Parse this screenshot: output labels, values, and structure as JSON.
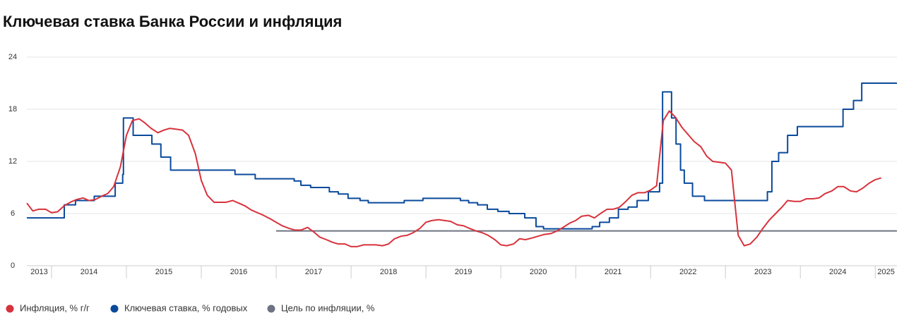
{
  "chart_data": {
    "type": "line",
    "title": "Ключевая ставка Банка России и инфляция",
    "xlim": [
      2013.67,
      2025.29
    ],
    "xticks": [
      2013,
      2014,
      2015,
      2016,
      2017,
      2018,
      2019,
      2020,
      2021,
      2022,
      2023,
      2024,
      2025
    ],
    "ylim": [
      0,
      24
    ],
    "yticks": [
      0,
      6,
      12,
      18,
      24
    ],
    "grid": true,
    "series": [
      {
        "name": "Инфляция, % г/г",
        "color": "#d8323c",
        "step": false,
        "x": [
          2013.67,
          2013.75,
          2013.83,
          2013.92,
          2014.0,
          2014.08,
          2014.17,
          2014.25,
          2014.33,
          2014.42,
          2014.5,
          2014.58,
          2014.67,
          2014.75,
          2014.83,
          2014.92,
          2015.0,
          2015.08,
          2015.17,
          2015.25,
          2015.33,
          2015.42,
          2015.5,
          2015.58,
          2015.67,
          2015.75,
          2015.83,
          2015.92,
          2016.0,
          2016.08,
          2016.17,
          2016.25,
          2016.33,
          2016.42,
          2016.5,
          2016.58,
          2016.67,
          2016.75,
          2016.83,
          2016.92,
          2017.0,
          2017.08,
          2017.17,
          2017.25,
          2017.33,
          2017.42,
          2017.5,
          2017.58,
          2017.67,
          2017.75,
          2017.83,
          2017.92,
          2018.0,
          2018.08,
          2018.17,
          2018.25,
          2018.33,
          2018.42,
          2018.5,
          2018.58,
          2018.67,
          2018.75,
          2018.83,
          2018.92,
          2019.0,
          2019.08,
          2019.17,
          2019.25,
          2019.33,
          2019.42,
          2019.5,
          2019.58,
          2019.67,
          2019.75,
          2019.83,
          2019.92,
          2020.0,
          2020.08,
          2020.17,
          2020.25,
          2020.33,
          2020.42,
          2020.5,
          2020.58,
          2020.67,
          2020.75,
          2020.83,
          2020.92,
          2021.0,
          2021.08,
          2021.17,
          2021.25,
          2021.33,
          2021.42,
          2021.5,
          2021.58,
          2021.67,
          2021.75,
          2021.83,
          2021.92,
          2022.0,
          2022.08,
          2022.17,
          2022.25,
          2022.33,
          2022.42,
          2022.5,
          2022.58,
          2022.67,
          2022.75,
          2022.83,
          2022.92,
          2023.0,
          2023.08,
          2023.17,
          2023.25,
          2023.33,
          2023.42,
          2023.5,
          2023.58,
          2023.67,
          2023.75,
          2023.83,
          2023.92,
          2024.0,
          2024.08,
          2024.17,
          2024.25,
          2024.33,
          2024.42,
          2024.5,
          2024.58,
          2024.67,
          2024.75,
          2024.83,
          2024.92,
          2025.0,
          2025.08
        ],
        "values": [
          7.2,
          6.3,
          6.5,
          6.5,
          6.1,
          6.2,
          6.9,
          7.3,
          7.6,
          7.8,
          7.5,
          7.6,
          8.0,
          8.3,
          9.1,
          11.4,
          15.0,
          16.7,
          16.9,
          16.4,
          15.8,
          15.3,
          15.6,
          15.8,
          15.7,
          15.6,
          15.0,
          12.9,
          9.8,
          8.1,
          7.3,
          7.3,
          7.3,
          7.5,
          7.2,
          6.9,
          6.4,
          6.1,
          5.8,
          5.4,
          5.0,
          4.6,
          4.3,
          4.1,
          4.1,
          4.4,
          3.9,
          3.3,
          3.0,
          2.7,
          2.5,
          2.5,
          2.2,
          2.2,
          2.4,
          2.4,
          2.4,
          2.3,
          2.5,
          3.1,
          3.4,
          3.5,
          3.8,
          4.3,
          5.0,
          5.2,
          5.3,
          5.2,
          5.1,
          4.7,
          4.6,
          4.3,
          4.0,
          3.8,
          3.5,
          3.0,
          2.4,
          2.3,
          2.5,
          3.1,
          3.0,
          3.2,
          3.4,
          3.6,
          3.7,
          4.0,
          4.4,
          4.9,
          5.2,
          5.7,
          5.8,
          5.5,
          6.0,
          6.5,
          6.5,
          6.7,
          7.4,
          8.1,
          8.4,
          8.4,
          8.7,
          9.2,
          16.7,
          17.8,
          17.1,
          15.9,
          15.1,
          14.3,
          13.7,
          12.6,
          12.0,
          11.9,
          11.8,
          11.0,
          3.5,
          2.3,
          2.5,
          3.3,
          4.3,
          5.2,
          6.0,
          6.7,
          7.5,
          7.4,
          7.4,
          7.7,
          7.7,
          7.8,
          8.3,
          8.6,
          9.1,
          9.1,
          8.6,
          8.5,
          8.9,
          9.5,
          9.9,
          10.1
        ]
      },
      {
        "name": "Ключевая ставка, % годовых",
        "color": "#0a4a9c",
        "step": true,
        "x": [
          2013.67,
          2014.17,
          2014.32,
          2014.57,
          2014.85,
          2014.95,
          2014.96,
          2015.09,
          2015.34,
          2015.46,
          2015.59,
          2016.45,
          2016.72,
          2017.24,
          2017.33,
          2017.46,
          2017.71,
          2017.83,
          2017.96,
          2018.12,
          2018.23,
          2018.71,
          2018.96,
          2019.46,
          2019.57,
          2019.69,
          2019.82,
          2019.96,
          2020.11,
          2020.32,
          2020.47,
          2020.57,
          2021.22,
          2021.32,
          2021.45,
          2021.57,
          2021.7,
          2021.82,
          2021.97,
          2022.12,
          2022.16,
          2022.28,
          2022.34,
          2022.4,
          2022.45,
          2022.56,
          2022.72,
          2023.56,
          2023.62,
          2023.71,
          2023.83,
          2023.96,
          2024.57,
          2024.71,
          2024.82,
          2025.29
        ],
        "values": [
          5.5,
          7.0,
          7.5,
          8.0,
          9.5,
          10.5,
          17,
          15,
          14,
          12.5,
          11,
          10.5,
          10,
          9.75,
          9.25,
          9.0,
          8.5,
          8.25,
          7.75,
          7.5,
          7.25,
          7.5,
          7.75,
          7.5,
          7.25,
          7.0,
          6.5,
          6.25,
          6.0,
          5.5,
          4.5,
          4.25,
          4.5,
          5.0,
          5.5,
          6.5,
          6.75,
          7.5,
          8.5,
          9.5,
          20,
          17,
          14,
          11,
          9.5,
          8,
          7.5,
          8.5,
          12,
          13,
          15,
          16,
          18,
          19,
          21,
          21
        ]
      },
      {
        "name": "Цель по инфляции, %",
        "color": "#6e7382",
        "step": false,
        "x": [
          2017.0,
          2025.29
        ],
        "values": [
          4,
          4
        ]
      }
    ]
  }
}
